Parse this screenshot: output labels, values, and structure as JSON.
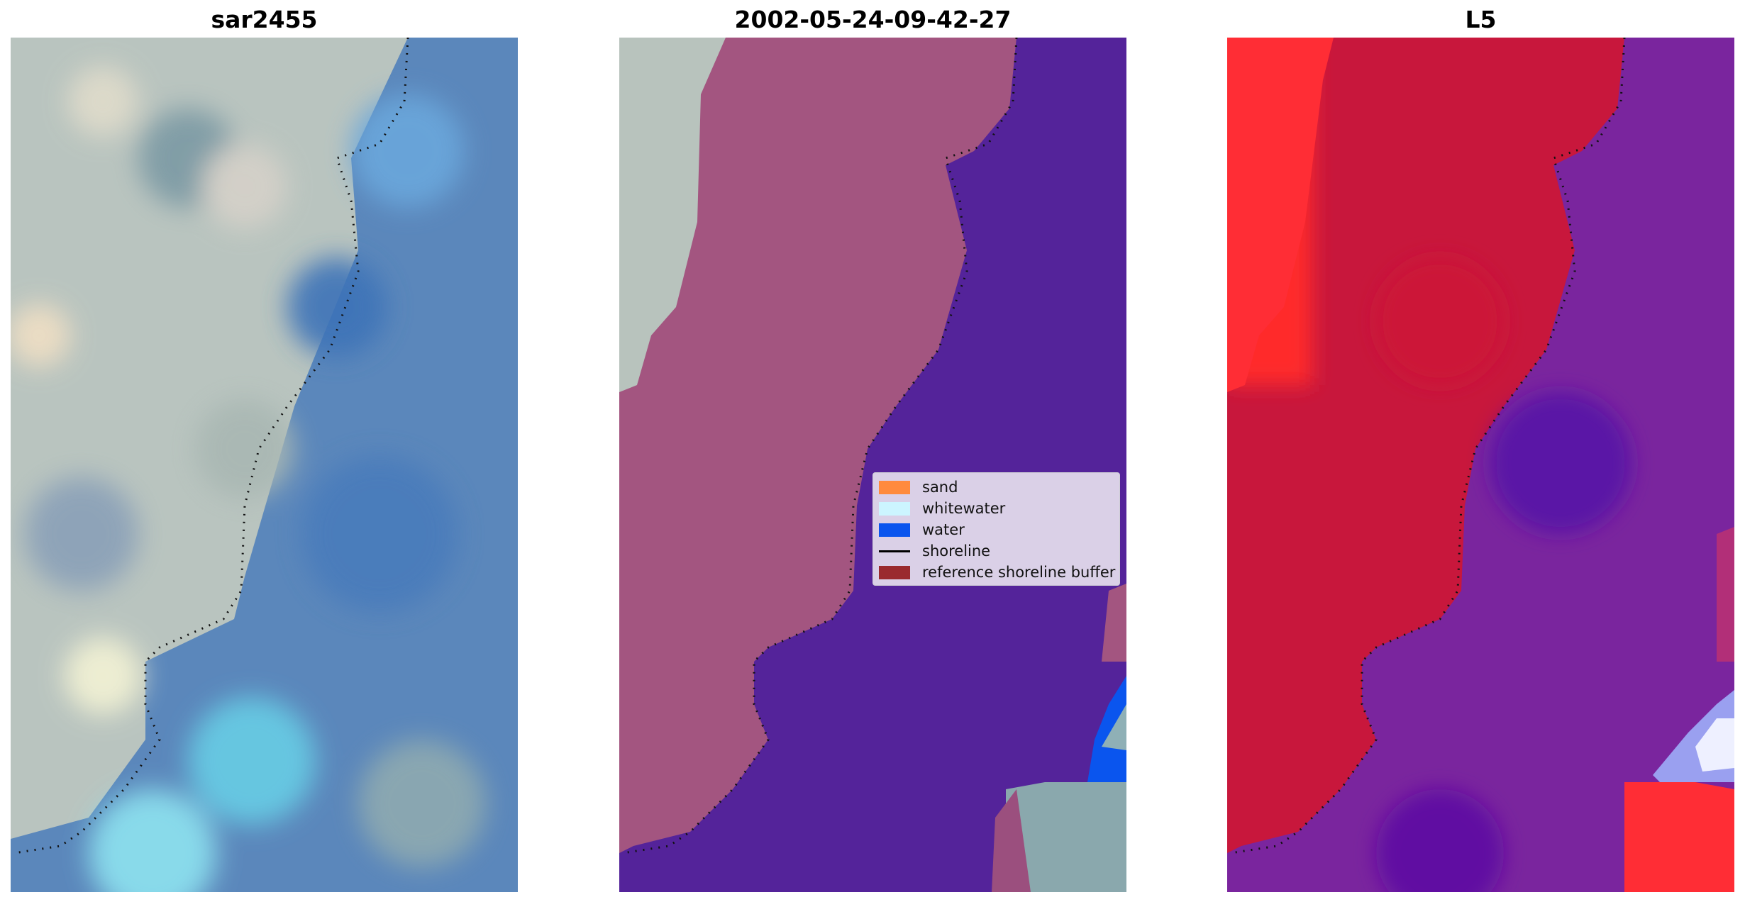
{
  "panels": [
    {
      "title": "sar2455"
    },
    {
      "title": "2002-05-24-09-42-27"
    },
    {
      "title": "L5"
    }
  ],
  "legend": {
    "items": [
      {
        "label": "sand",
        "color": "#ff8a3d",
        "kind": "patch"
      },
      {
        "label": "whitewater",
        "color": "#ccf5ff",
        "kind": "patch"
      },
      {
        "label": "water",
        "color": "#0a55ee",
        "kind": "patch"
      },
      {
        "label": "shoreline",
        "color": "#000000",
        "kind": "line"
      },
      {
        "label": "reference shoreline buffer",
        "color": "#9a2a2e",
        "kind": "patch"
      }
    ]
  },
  "colors": {
    "land_rgb": "#b8c2be",
    "ocean_rgb": "#4f86c0",
    "land_class": "#a35580",
    "water_class": "#54239a",
    "land_index": "#c8173c",
    "water_index": "#6a1aa0",
    "index_high": "#ff3535"
  }
}
